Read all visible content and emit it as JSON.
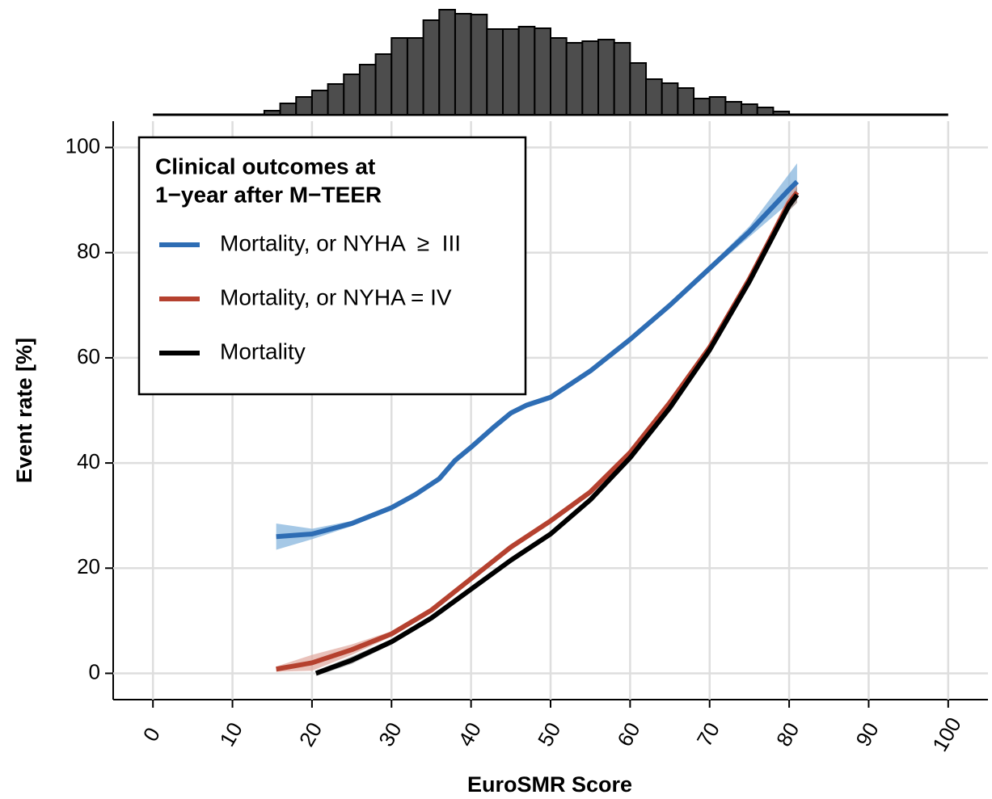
{
  "chart_data": [
    {
      "type": "histogram",
      "bins": [
        14,
        16,
        18,
        20,
        22,
        24,
        26,
        28,
        30,
        32,
        34,
        36,
        38,
        40,
        42,
        44,
        46,
        48,
        50,
        52,
        54,
        56,
        58,
        60,
        62,
        64,
        66,
        68,
        70,
        72,
        74,
        76,
        78,
        80
      ],
      "values": [
        5,
        14,
        22,
        30,
        38,
        50,
        62,
        75,
        95,
        95,
        117,
        130,
        125,
        124,
        106,
        106,
        109,
        107,
        95,
        89,
        91,
        93,
        89,
        64,
        44,
        39,
        33,
        20,
        22,
        16,
        13,
        9,
        4
      ],
      "color": "#4d4d4d",
      "xlim": [
        -5,
        105
      ]
    },
    {
      "type": "line",
      "xlabel": "EuroSMR Score",
      "ylabel": "Event rate [%]",
      "xlim": [
        -5,
        105
      ],
      "ylim": [
        -5,
        105
      ],
      "xticks": [
        0,
        10,
        20,
        30,
        40,
        50,
        60,
        70,
        80,
        90,
        100
      ],
      "yticks": [
        0,
        20,
        40,
        60,
        80,
        100
      ],
      "grid": true,
      "legend_title": [
        "Clinical outcomes at",
        "1−year after M−TEER"
      ],
      "legend_position": "top-left",
      "series": [
        {
          "name": "Mortality, or NYHA  ≥  III",
          "color": "#2e6db4",
          "band_color": "#7fb0dc",
          "x": [
            15.5,
            20,
            25,
            30,
            33,
            36,
            38,
            40,
            43,
            45,
            47,
            50,
            55,
            60,
            65,
            70,
            75,
            80,
            81
          ],
          "values": [
            26,
            26.5,
            28.5,
            31.5,
            34,
            37,
            40.5,
            43,
            47,
            49.5,
            51,
            52.5,
            57.5,
            63.5,
            70,
            77,
            84,
            92,
            93.5
          ],
          "lower": [
            23.5,
            25.5,
            28,
            31,
            33.5,
            36.5,
            40,
            42.5,
            46.5,
            49,
            50.5,
            52,
            57,
            63,
            69.5,
            76.5,
            83,
            89.5,
            90.5
          ],
          "upper": [
            28.5,
            27.5,
            29,
            32,
            34.5,
            37.5,
            41,
            43.5,
            47.5,
            50,
            51.5,
            53,
            58,
            64,
            70.5,
            77.5,
            85,
            95,
            97
          ]
        },
        {
          "name": "Mortality, or NYHA = IV",
          "color": "#b5412f",
          "band_color": "#e0a79c",
          "x": [
            15.5,
            20,
            25,
            30,
            35,
            40,
            45,
            48,
            50,
            55,
            60,
            65,
            70,
            75,
            80,
            81
          ],
          "values": [
            0.8,
            2,
            4.5,
            7.5,
            12,
            18,
            24,
            27,
            29,
            34.5,
            42,
            51.5,
            62,
            75,
            89.5,
            91.5
          ],
          "lower": [
            0.3,
            0.5,
            3.5,
            7,
            11.5,
            17.5,
            23.5,
            26.5,
            28.5,
            34,
            41.5,
            51,
            61.5,
            74.5,
            88,
            89.5
          ],
          "upper": [
            1.3,
            3.5,
            5.5,
            8,
            12.5,
            18.5,
            24.5,
            27.5,
            29.5,
            35,
            42.5,
            52,
            62.5,
            75.5,
            91,
            93.5
          ]
        },
        {
          "name": "Mortality",
          "color": "#000000",
          "band_color": "#999999",
          "x": [
            20.5,
            25,
            30,
            35,
            40,
            45,
            48,
            50,
            55,
            60,
            65,
            70,
            75,
            80,
            81
          ],
          "values": [
            0,
            2.5,
            6,
            10.5,
            16,
            21.5,
            24.5,
            26.5,
            33,
            41,
            50.5,
            61.5,
            74.5,
            89,
            91
          ],
          "lower": [
            -0.5,
            1.8,
            5.5,
            10,
            15.5,
            21,
            24,
            26,
            32.5,
            40.5,
            50,
            61,
            74,
            88,
            89.5
          ],
          "upper": [
            0.5,
            3.2,
            6.5,
            11,
            16.5,
            22,
            25,
            27,
            33.5,
            41.5,
            51,
            62,
            75,
            90,
            92.5
          ]
        }
      ]
    }
  ]
}
